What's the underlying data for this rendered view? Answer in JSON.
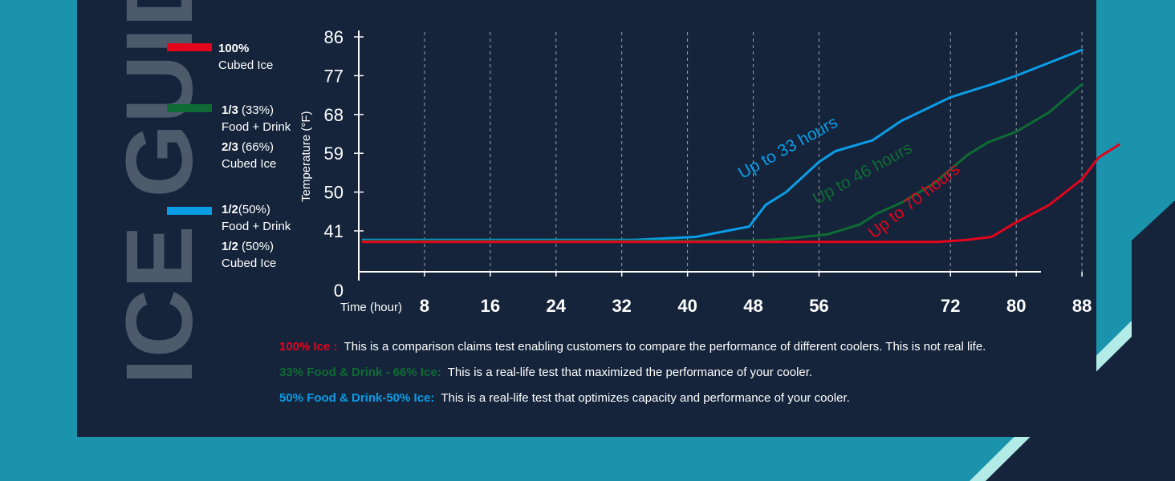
{
  "side_title": "ICE GUIDE",
  "legend": [
    {
      "color": "#e3051b",
      "bold": "100%",
      "line1_rest": "",
      "line2": "Cubed Ice"
    },
    {
      "color": "#0f6b34",
      "bold": "1/3",
      "line1_rest": " (33%)",
      "line2": "Food + Drink",
      "bold_b": "2/3",
      "line3_rest": " (66%)",
      "line4": "Cubed Ice"
    },
    {
      "color": "#0a9de6",
      "bold": "1/2",
      "line1_rest": "(50%)",
      "line2": "Food + Drink",
      "bold_b": "1/2",
      "line3_rest": " (50%)",
      "line4": "Cubed Ice"
    }
  ],
  "notes": [
    {
      "tag": "100% Ice :",
      "color": "#e3051b",
      "text": "This is a comparison claims test enabling customers to compare the performance of different coolers. This is not real life."
    },
    {
      "tag": "33% Food & Drink - 66% Ice:",
      "color": "#0f6b34",
      "text": "This is a real-life test that maximized the performance of your cooler."
    },
    {
      "tag": "50% Food & Drink-50% Ice:",
      "color": "#0a9de6",
      "text": "This is a real-life test that optimizes capacity and performance of your cooler."
    }
  ],
  "chart_data": {
    "type": "line",
    "xlabel": "Time (hour)",
    "ylabel": "Temperature (°F)",
    "x_ticks": [
      8,
      16,
      24,
      32,
      40,
      48,
      56,
      72,
      80,
      88
    ],
    "y_ticks": [
      0,
      41,
      50,
      59,
      68,
      77,
      86
    ],
    "grid_vertical": true,
    "series": [
      {
        "color": "#0a9de6",
        "annotation": "Up to 33 hours",
        "points": [
          [
            0.5,
            32
          ],
          [
            33.5,
            32
          ],
          [
            41,
            35
          ],
          [
            47.5,
            42
          ],
          [
            49.5,
            47
          ],
          [
            52,
            50
          ],
          [
            56,
            57
          ],
          [
            58,
            59.5
          ],
          [
            62.5,
            62
          ],
          [
            66,
            66.5
          ],
          [
            72,
            72
          ],
          [
            77,
            75
          ],
          [
            80,
            77
          ],
          [
            88,
            83
          ]
        ]
      },
      {
        "color": "#0f6b34",
        "annotation": "Up to 46 hours",
        "points": [
          [
            0.5,
            31
          ],
          [
            47,
            31
          ],
          [
            50,
            32
          ],
          [
            53,
            34
          ],
          [
            57,
            37.5
          ],
          [
            61,
            42.5
          ],
          [
            63,
            45
          ],
          [
            66,
            47.5
          ],
          [
            70,
            52
          ],
          [
            74,
            58.5
          ],
          [
            76.5,
            61.5
          ],
          [
            80,
            64
          ],
          [
            84,
            68.5
          ],
          [
            88,
            75
          ]
        ]
      },
      {
        "color": "#e3051b",
        "annotation": "Up to 70 hours",
        "points": [
          [
            0.5,
            30
          ],
          [
            70.5,
            30
          ],
          [
            74,
            32
          ],
          [
            77,
            35
          ],
          [
            80,
            43
          ],
          [
            84,
            47
          ],
          [
            88,
            53
          ],
          [
            90,
            58
          ],
          [
            92.5,
            61
          ]
        ]
      }
    ]
  }
}
